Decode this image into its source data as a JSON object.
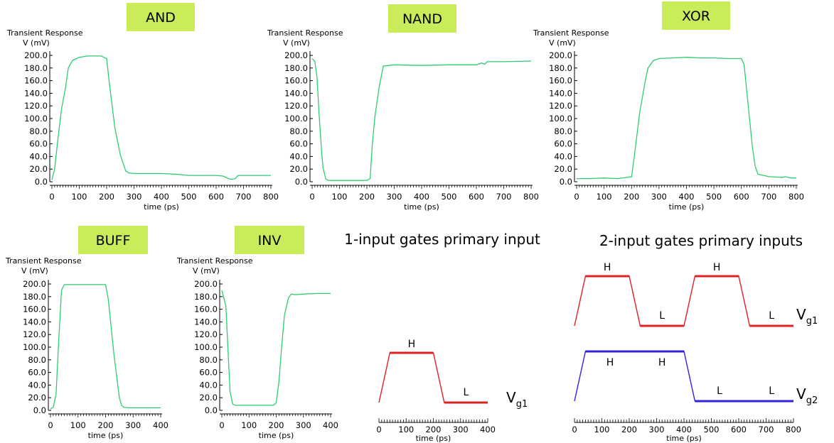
{
  "colors": {
    "trace": "#2ecc71",
    "gate_badge": "#c8ec5a",
    "input_high_low": "#e02020",
    "input_second": "#3322dd"
  },
  "chart_data": [
    {
      "type": "line",
      "id": "and",
      "gate_label": "AND",
      "title": "Transient Response",
      "ylabel": "V (mV)",
      "xlabel": "time (ps)",
      "xlim": [
        0,
        800
      ],
      "ylim": [
        0,
        200
      ],
      "x_ticks": [
        "0",
        "100",
        "200",
        "300",
        "400",
        "500",
        "600",
        "700",
        "800"
      ],
      "y_ticks": [
        "0.0",
        "20.0",
        "40.0",
        "60.0",
        "80.0",
        "100.0",
        "120.0",
        "140.0",
        "160.0",
        "180.0",
        "200.0"
      ],
      "series": [
        {
          "x": [
            0,
            10,
            20,
            35,
            50,
            60,
            75,
            100,
            130,
            160,
            180,
            200,
            210,
            230,
            250,
            270,
            280,
            300,
            400,
            450,
            500,
            600,
            625,
            650,
            660,
            670,
            680,
            700,
            800
          ],
          "y": [
            3,
            20,
            60,
            115,
            150,
            180,
            192,
            197,
            199,
            199,
            199,
            195,
            155,
            85,
            42,
            17,
            14,
            13,
            13,
            12,
            10,
            10,
            9,
            4,
            4,
            5,
            10,
            10,
            10
          ]
        }
      ]
    },
    {
      "type": "line",
      "id": "nand",
      "gate_label": "NAND",
      "title": "Transient Response",
      "ylabel": "V (mV)",
      "xlabel": "time (ps)",
      "xlim": [
        0,
        800
      ],
      "ylim": [
        0,
        200
      ],
      "x_ticks": [
        "0",
        "100",
        "200",
        "300",
        "400",
        "500",
        "600",
        "700",
        "800"
      ],
      "y_ticks": [
        "0.0",
        "20.0",
        "40.0",
        "60.0",
        "80.0",
        "100.0",
        "120.0",
        "140.0",
        "160.0",
        "180.0",
        "200.0"
      ],
      "series": [
        {
          "x": [
            0,
            10,
            18,
            25,
            35,
            40,
            50,
            60,
            100,
            150,
            200,
            212,
            220,
            230,
            245,
            260,
            300,
            400,
            500,
            600,
            620,
            630,
            640,
            650,
            700,
            800
          ],
          "y": [
            195,
            190,
            165,
            110,
            45,
            22,
            4,
            2,
            2,
            2,
            2,
            5,
            60,
            105,
            150,
            183,
            185,
            184,
            185,
            185,
            188,
            186,
            190,
            190,
            190,
            191
          ]
        }
      ]
    },
    {
      "type": "line",
      "id": "xor",
      "gate_label": "XOR",
      "title": "Transient Response",
      "ylabel": "V (mV)",
      "xlabel": "time (ps)",
      "xlim": [
        0,
        800
      ],
      "ylim": [
        0,
        200
      ],
      "x_ticks": [
        "0",
        "100",
        "200",
        "300",
        "400",
        "500",
        "600",
        "700",
        "800"
      ],
      "y_ticks": [
        "0.0",
        "20.0",
        "40.0",
        "60.0",
        "80.0",
        "100.0",
        "120.0",
        "140.0",
        "160.0",
        "180.0",
        "200.0"
      ],
      "series": [
        {
          "x": [
            0,
            50,
            100,
            150,
            200,
            210,
            230,
            250,
            260,
            280,
            300,
            350,
            400,
            450,
            500,
            550,
            600,
            610,
            625,
            640,
            650,
            660,
            700,
            750,
            760,
            780,
            800
          ],
          "y": [
            5,
            5,
            6,
            5,
            8,
            40,
            110,
            160,
            180,
            192,
            195,
            196,
            197,
            196,
            196,
            195,
            195,
            185,
            120,
            55,
            25,
            12,
            8,
            7,
            8,
            6,
            6
          ]
        }
      ]
    },
    {
      "type": "line",
      "id": "buff",
      "gate_label": "BUFF",
      "title": "Transient Response",
      "ylabel": "V (mV)",
      "xlabel": "time (ps)",
      "xlim": [
        0,
        400
      ],
      "ylim": [
        0,
        200
      ],
      "x_ticks": [
        "0",
        "100",
        "200",
        "300",
        "400"
      ],
      "y_ticks": [
        "0.0",
        "20.0",
        "40.0",
        "60.0",
        "80.0",
        "100.0",
        "120.0",
        "140.0",
        "160.0",
        "180.0",
        "200.0"
      ],
      "series": [
        {
          "x": [
            0,
            10,
            20,
            30,
            40,
            50,
            100,
            150,
            200,
            210,
            230,
            250,
            258,
            265,
            280,
            300,
            350,
            400
          ],
          "y": [
            2,
            5,
            25,
            110,
            190,
            199,
            199,
            199,
            199,
            175,
            90,
            20,
            8,
            5,
            4,
            4,
            4,
            4
          ]
        }
      ]
    },
    {
      "type": "line",
      "id": "inv",
      "gate_label": "INV",
      "title": "Transient Response",
      "ylabel": "V (mV)",
      "xlabel": "time (ps)",
      "xlim": [
        0,
        400
      ],
      "ylim": [
        0,
        200
      ],
      "x_ticks": [
        "0",
        "100",
        "200",
        "300",
        "400"
      ],
      "y_ticks": [
        "0.0",
        "20.0",
        "40.0",
        "60.0",
        "80.0",
        "100.0",
        "120.0",
        "140.0",
        "160.0",
        "180.0",
        "200.0"
      ],
      "series": [
        {
          "x": [
            0,
            15,
            30,
            40,
            50,
            100,
            150,
            190,
            200,
            210,
            220,
            230,
            245,
            255,
            270,
            300,
            350,
            400
          ],
          "y": [
            190,
            165,
            30,
            10,
            8,
            8,
            8,
            8,
            12,
            45,
            100,
            150,
            178,
            184,
            183,
            184,
            185,
            185
          ]
        }
      ]
    },
    {
      "type": "line",
      "id": "input1",
      "section_title": "1-input gates primary input",
      "xlabel": "time (ps)",
      "xlim": [
        0,
        400
      ],
      "x_ticks": [
        "0",
        "100",
        "200",
        "300",
        "400"
      ],
      "series": [
        {
          "name": "Vg1",
          "x": [
            0,
            40,
            200,
            240,
            400
          ],
          "y": [
            0,
            1,
            1,
            0,
            0
          ],
          "levels": [
            {
              "text": "H",
              "x": 120,
              "level": 1
            },
            {
              "text": "L",
              "x": 320,
              "level": 0
            }
          ]
        }
      ],
      "signal_labels": [
        {
          "base": "V",
          "sub": "g1"
        }
      ]
    },
    {
      "type": "line",
      "id": "input2",
      "section_title": "2-input gates primary inputs",
      "xlabel": "time (ps)",
      "xlim": [
        0,
        800
      ],
      "x_ticks": [
        "0",
        "100",
        "200",
        "300",
        "400",
        "500",
        "600",
        "700",
        "800"
      ],
      "series": [
        {
          "name": "Vg1",
          "x": [
            0,
            40,
            200,
            240,
            400,
            440,
            600,
            640,
            800
          ],
          "y": [
            0,
            1,
            1,
            0,
            0,
            1,
            1,
            0,
            0
          ],
          "levels": [
            {
              "text": "H",
              "x": 120,
              "level": 1
            },
            {
              "text": "L",
              "x": 320,
              "level": 0
            },
            {
              "text": "H",
              "x": 520,
              "level": 1
            },
            {
              "text": "L",
              "x": 720,
              "level": 0
            }
          ]
        },
        {
          "name": "Vg2",
          "x": [
            0,
            40,
            400,
            440,
            800
          ],
          "y": [
            0,
            1,
            1,
            0,
            0
          ],
          "levels": [
            {
              "text": "H",
              "x": 130,
              "level": 1
            },
            {
              "text": "H",
              "x": 320,
              "level": 1
            },
            {
              "text": "L",
              "x": 530,
              "level": 0
            },
            {
              "text": "L",
              "x": 720,
              "level": 0
            }
          ]
        }
      ],
      "signal_labels": [
        {
          "base": "V",
          "sub": "g1"
        },
        {
          "base": "V",
          "sub": "g2"
        }
      ]
    }
  ]
}
